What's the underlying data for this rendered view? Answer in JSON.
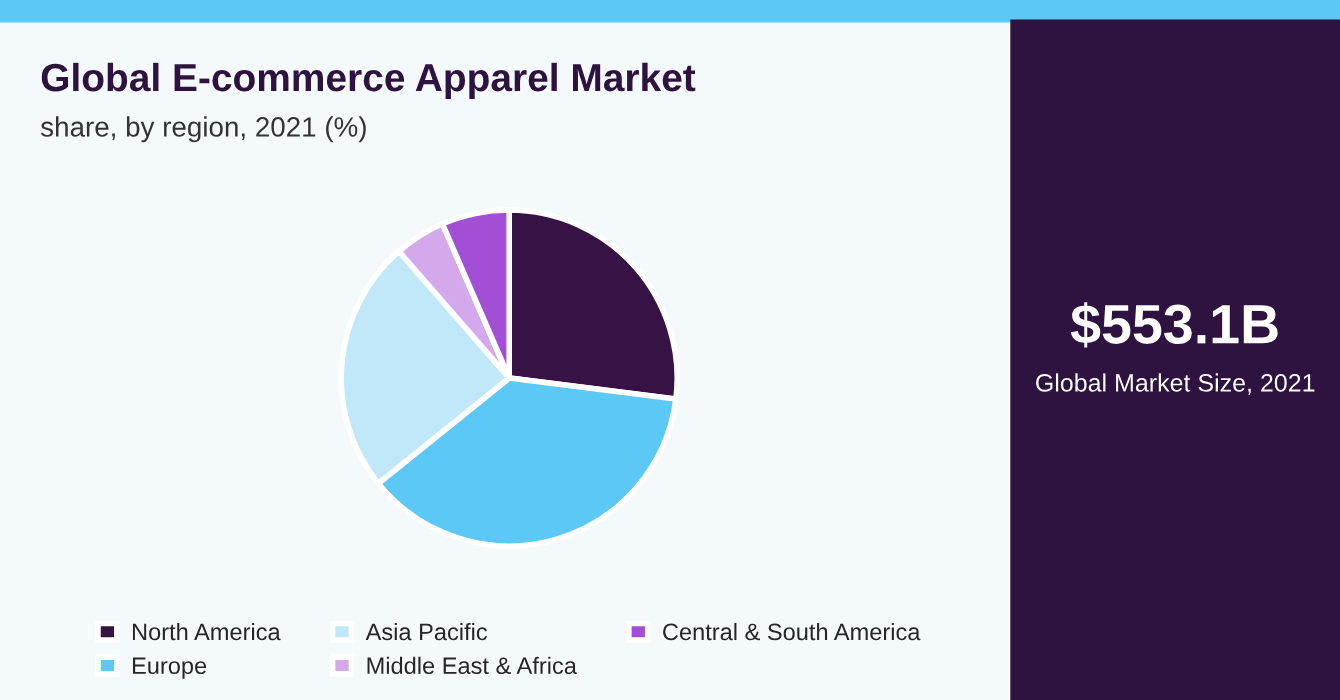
{
  "chart_data": {
    "type": "pie",
    "title": "Global E-commerce Apparel Market",
    "subtitle": "share, by region, 2021 (%)",
    "categories": [
      "North America",
      "Europe",
      "Asia Pacific",
      "Middle East & Africa",
      "Central & South America"
    ],
    "values": [
      27,
      37.2,
      24.4,
      4.9,
      6.5
    ],
    "colors": [
      "#371245",
      "#5bc8f5",
      "#c0e8f8",
      "#d4a9ec",
      "#a24fd6"
    ],
    "legend": "bottom",
    "annotations": [
      "$553.1B",
      "Global Market Size, 2021"
    ]
  }
}
